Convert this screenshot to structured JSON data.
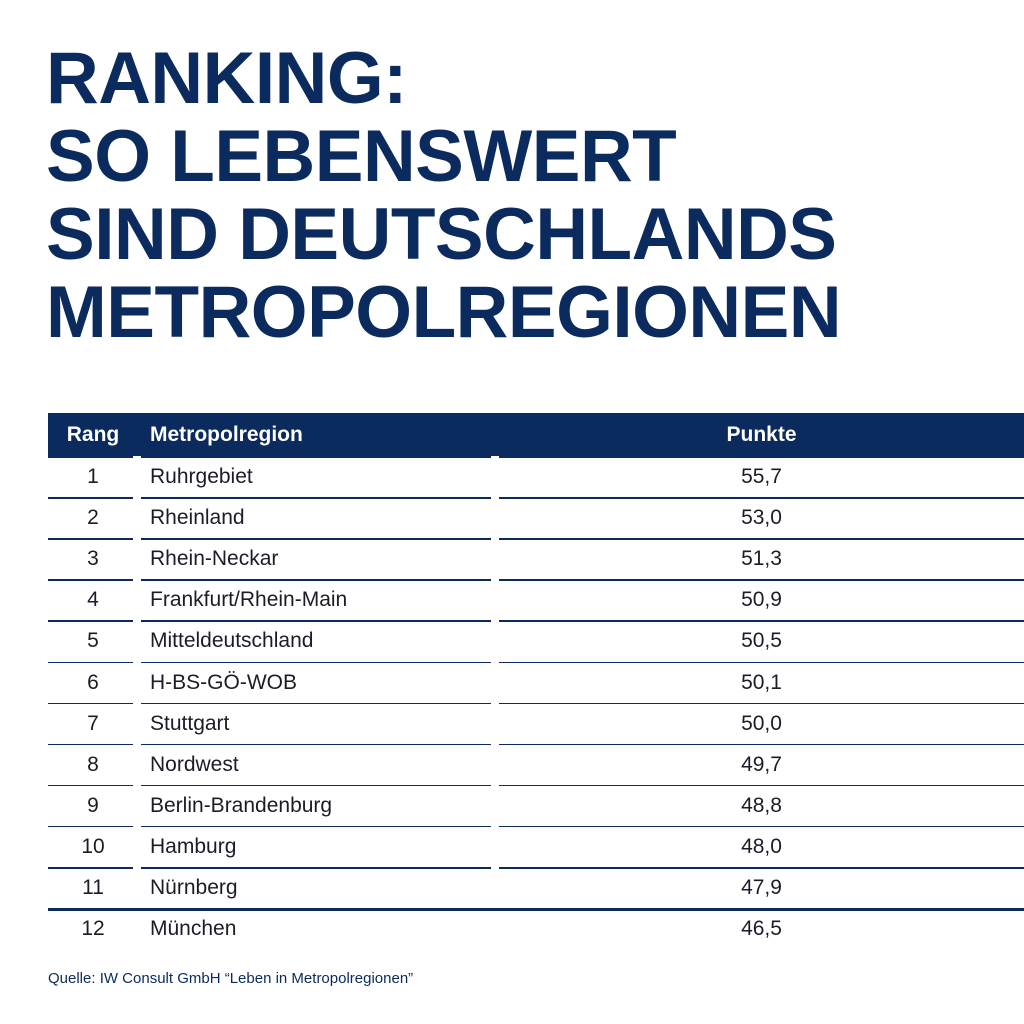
{
  "header": {
    "title": [
      "RANKING:",
      "SO LEBENSWERT",
      "SIND DEUTSCHLANDS",
      "METROPOLREGIONEN"
    ]
  },
  "table": {
    "columns": [
      "Rang",
      "Metropolregion",
      "Punkte"
    ],
    "rows": [
      [
        "1",
        "Ruhrgebiet",
        "55,7"
      ],
      [
        "2",
        "Rheinland",
        "53,0"
      ],
      [
        "3",
        "Rhein-Neckar",
        "51,3"
      ],
      [
        "4",
        "Frankfurt/Rhein-Main",
        "50,9"
      ],
      [
        "5",
        "Mitteldeutschland",
        "50,5"
      ],
      [
        "6",
        "H-BS-GÖ-WOB",
        "50,1"
      ],
      [
        "7",
        "Stuttgart",
        "50,0"
      ],
      [
        "8",
        "Nordwest",
        "49,7"
      ],
      [
        "9",
        "Berlin-Brandenburg",
        "48,8"
      ],
      [
        "10",
        "Hamburg",
        "48,0"
      ],
      [
        "11",
        "Nürnberg",
        "47,9"
      ],
      [
        "12",
        "München",
        "46,5"
      ]
    ]
  },
  "source": "Quelle: IW Consult GmbH “Leben in Metropolregionen”"
}
